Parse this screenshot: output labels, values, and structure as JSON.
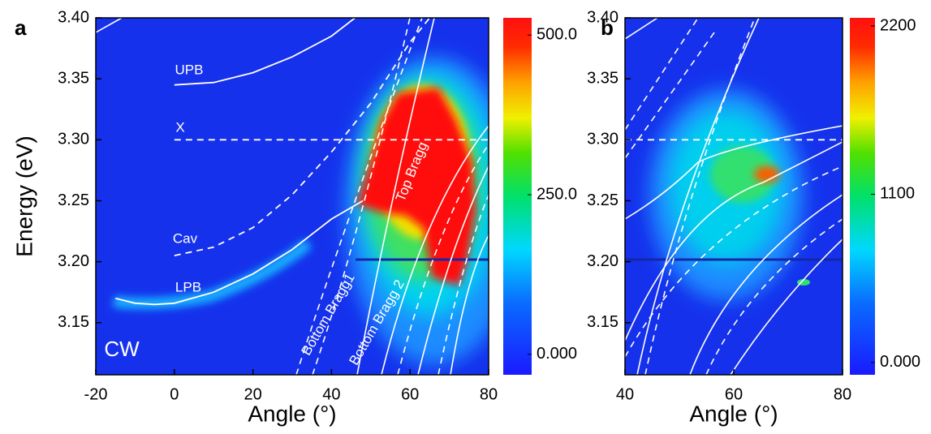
{
  "chart_data": [
    {
      "type": "heatmap",
      "panel_label": "a",
      "y_label": "Energy (eV)",
      "x_label": "Angle (°)",
      "xlim": [
        -20,
        80
      ],
      "xticks": [
        -20,
        0,
        20,
        40,
        60,
        80
      ],
      "ylim": [
        3.1073,
        3.4
      ],
      "yticks": [
        {
          "value": 3.15,
          "label": "3.15"
        },
        {
          "value": 3.2,
          "label": "3.20"
        },
        {
          "value": 3.25,
          "label": "3.25"
        },
        {
          "value": 3.3,
          "label": "3.30"
        },
        {
          "value": 3.35,
          "label": "3.35"
        },
        {
          "value": 3.4,
          "label": "3.40"
        }
      ],
      "clim": [
        -32,
        527
      ],
      "cticks": [
        {
          "value": 0,
          "label": "0.000"
        },
        {
          "value": 250,
          "label": "250.0"
        },
        {
          "value": 500,
          "label": "500.0"
        }
      ],
      "series": [
        {
          "name": "UPB",
          "color": "#ffffff",
          "dashed": false,
          "x": [
            0,
            10,
            20,
            30,
            40,
            46
          ],
          "values": [
            3.345,
            3.347,
            3.355,
            3.368,
            3.385,
            3.4
          ]
        },
        {
          "name": "X",
          "color": "#ffffff",
          "dashed": true,
          "x": [
            0,
            80
          ],
          "values": [
            3.3,
            3.3
          ]
        },
        {
          "name": "Cav",
          "color": "#ffffff",
          "dashed": true,
          "x": [
            0,
            10,
            20,
            30,
            40,
            50,
            60,
            65
          ],
          "values": [
            3.205,
            3.212,
            3.228,
            3.255,
            3.29,
            3.33,
            3.38,
            3.4
          ]
        },
        {
          "name": "LPB",
          "color": "#ffffff",
          "dashed": false,
          "x": [
            -15,
            -10,
            -5,
            0,
            10,
            20,
            30,
            40,
            48
          ],
          "values": [
            3.17,
            3.166,
            3.165,
            3.166,
            3.175,
            3.19,
            3.21,
            3.235,
            3.25
          ]
        }
      ],
      "annotations": [
        "CW",
        "Top Bragg",
        "Bottom Bragg1",
        "Bottom Bragg 2"
      ]
    },
    {
      "type": "heatmap",
      "panel_label": "b",
      "x_label": "Angle (°)",
      "xlim": [
        40,
        80
      ],
      "xticks": [
        40,
        60,
        80
      ],
      "ylim": [
        3.1073,
        3.4
      ],
      "yticks": [
        {
          "value": 3.15,
          "label": "3.15"
        },
        {
          "value": 3.2,
          "label": "3.20"
        },
        {
          "value": 3.25,
          "label": "3.25"
        },
        {
          "value": 3.3,
          "label": "3.30"
        },
        {
          "value": 3.35,
          "label": "3.35"
        },
        {
          "value": 3.4,
          "label": "3.40"
        }
      ],
      "clim": [
        -80,
        2253
      ],
      "cticks": [
        {
          "value": 0,
          "label": "0.000"
        },
        1100,
        2200
      ],
      "series": [
        {
          "name": "X",
          "color": "#ffffff",
          "dashed": true,
          "x": [
            40,
            80
          ],
          "values": [
            3.3,
            3.3
          ]
        }
      ],
      "annotations": []
    }
  ]
}
